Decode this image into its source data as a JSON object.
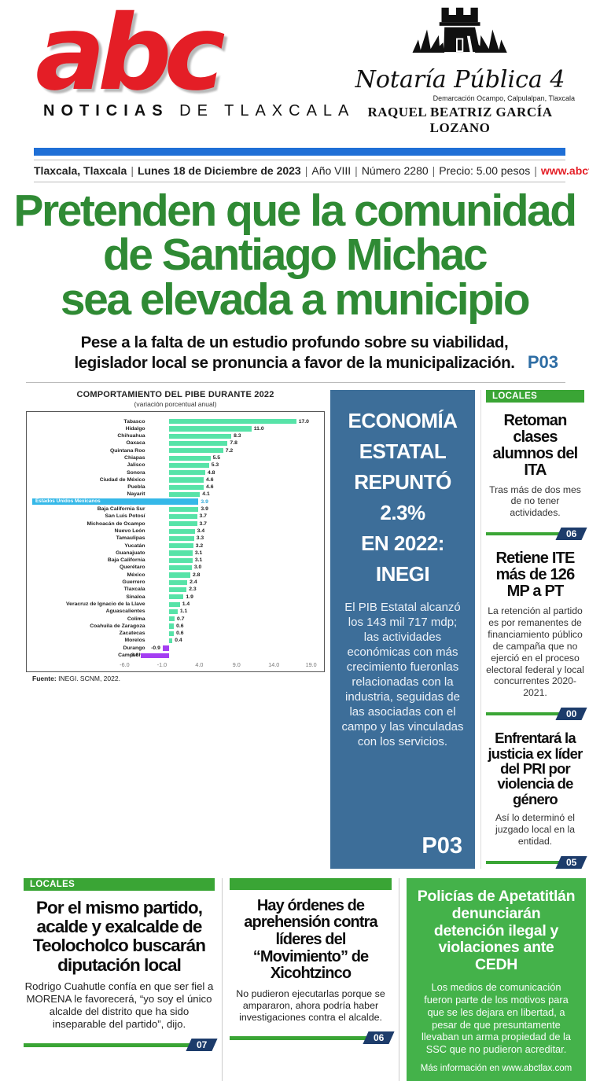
{
  "masthead": {
    "logo": "abc",
    "tagline_bold": "NOTICIAS",
    "tagline_rest": "DE TLAXCALA",
    "ad": {
      "castle_icon": "notaria-castle-icon",
      "script_title": "Notaría Pública 4",
      "subtitle": "Demarcación Ocampo, Calpulalpan, Tlaxcala",
      "name": "RAQUEL BEATRIZ GARCÍA LOZANO"
    },
    "dateline": {
      "place": "Tlaxcala, Tlaxcala",
      "date": "Lunes 18 de Diciembre de 2023",
      "year": "Año VIII",
      "number": "Número 2280",
      "price": "Precio: 5.00 pesos",
      "website": "www.abctlax.com",
      "separator": "|"
    },
    "colors": {
      "logo_red": "#e41e26",
      "bar_blue": "#1f6fd6"
    }
  },
  "lead": {
    "headline_lines": [
      "Pretenden que la comunidad",
      "de Santiago Michac",
      "sea elevada a municipio"
    ],
    "subhead": "Pese a la falta de un estudio profundo sobre su viabilidad, legislador local se pronuncia a favor de la municipalización.",
    "page_ref": "P03",
    "headline_color": "#2f8a34"
  },
  "chart_data": {
    "type": "bar",
    "orientation": "horizontal",
    "title": "COMPORTAMIENTO DEL PIBE DURANTE 2022",
    "subtitle": "(variación porcentual anual)",
    "source": "Fuente: INEGI. SCNM, 2022.",
    "categories": [
      "Tabasco",
      "Hidalgo",
      "Chihuahua",
      "Oaxaca",
      "Quintana Roo",
      "Chiapas",
      "Jalisco",
      "Sonora",
      "Ciudad de México",
      "Puebla",
      "Nayarit",
      "Estados Unidos Mexicanos",
      "Baja California Sur",
      "San Luis Potosí",
      "Michoacán de Ocampo",
      "Nuevo León",
      "Tamaulipas",
      "Yucatán",
      "Guanajuato",
      "Baja California",
      "Querétaro",
      "México",
      "Guerrero",
      "Tlaxcala",
      "Sinaloa",
      "Veracruz de Ignacio de la Llave",
      "Aguascalientes",
      "Colima",
      "Coahuila de Zaragoza",
      "Zacatecas",
      "Morelos",
      "Durango",
      "Campeche"
    ],
    "values": [
      17.0,
      11.0,
      8.3,
      7.8,
      7.2,
      5.5,
      5.3,
      4.8,
      4.6,
      4.6,
      4.1,
      3.9,
      3.9,
      3.7,
      3.7,
      3.4,
      3.3,
      3.2,
      3.1,
      3.1,
      3.0,
      2.8,
      2.4,
      2.3,
      1.9,
      1.4,
      1.1,
      0.7,
      0.6,
      0.6,
      0.4,
      -0.9,
      -3.8
    ],
    "highlight_category": "Estados Unidos Mexicanos",
    "x_ticks": [
      -6.0,
      -1.0,
      4.0,
      9.0,
      14.0,
      19.0
    ],
    "axis_range": [
      -18.7,
      20.3
    ],
    "grid": false,
    "colors": {
      "positive": "#57e3a8",
      "negative": "#a43ef2",
      "highlight": "#35b8e8"
    }
  },
  "economy_box": {
    "title_lines": [
      "ECONOMÍA",
      "ESTATAL",
      "REPUNTÓ 2.3%",
      "EN 2022: INEGI"
    ],
    "body": "El PIB Estatal alcanzó los 143 mil 717 mdp; las actividades económicas con más crecimiento fueronlas relacionadas con la industria, seguidas de las asociadas con el campo y las vinculadas con los servicios.",
    "page_ref": "P03",
    "background": "#3d6e99"
  },
  "sidebar": {
    "section_label": "LOCALES",
    "accent_green": "#3aa535",
    "badge_navy": "#1d3c6b",
    "items": [
      {
        "headline": "Retoman clases alumnos del ITA",
        "body": "Tras más de dos mes de no tener actividades.",
        "page": "06"
      },
      {
        "headline": "Retiene ITE más de 126 MP a PT",
        "body": "La retención al partido es por remanentes de financiamiento público de campaña que no ejerció en el proceso electoral federal y local concurrentes 2020-2021.",
        "page": "00"
      },
      {
        "headline": "Enfrentará la justicia ex líder del PRI por violencia de género",
        "body": "Así lo determinó el juzgado local en la entidad.",
        "page": "05"
      }
    ]
  },
  "bottom": {
    "section_label": "LOCALES",
    "left": {
      "headline": "Por el mismo partido, acalde y exalcalde de Teolocholco buscarán diputación local",
      "body": "Rodrigo Cuahutle confía en que ser fiel a MORENA le favorecerá, “yo soy el único alcalde del distrito que ha sido inseparable del partido”, dijo.",
      "page": "07"
    },
    "middle": {
      "headline": "Hay órdenes de aprehensión contra líderes del “Movimiento” de Xicohtzinco",
      "body": "No pudieron ejecutarlas porque se ampararon, ahora podría haber investigaciones contra el alcalde.",
      "page": "06"
    },
    "right": {
      "headline": "Policías de Apetatitlán denunciarán detención ilegal y violaciones ante CEDH",
      "body": "Los medios de comunicación fueron parte de los motivos para que se les dejara en libertad, a pesar de que presuntamente llevaban un arma propiedad de la SSC que no pudieron acreditar.",
      "footer": "Más información en www.abctlax.com",
      "background": "#44b24a"
    }
  }
}
